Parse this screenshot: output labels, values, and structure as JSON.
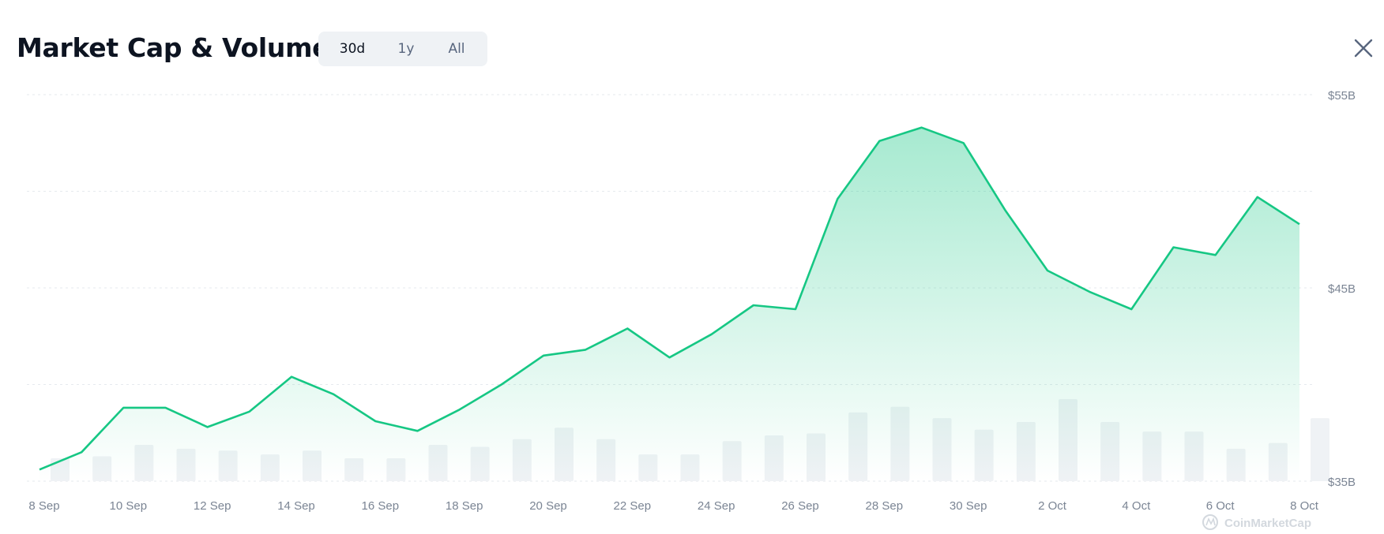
{
  "header": {
    "title": "Market Cap & Volume",
    "ranges": [
      "30d",
      "1y",
      "All"
    ],
    "active_range": "30d"
  },
  "watermark": "CoinMarketCap",
  "colors": {
    "line": "#16c784",
    "area_top": "#16c784",
    "volume_bar": "#eff2f5",
    "grid": "#e6e9ee",
    "axis_text": "#7b8594"
  },
  "chart_data": {
    "type": "area",
    "series": [
      {
        "name": "",
        "x": [
          "8 Sep",
          "9 Sep",
          "10 Sep",
          "11 Sep",
          "12 Sep",
          "13 Sep",
          "14 Sep",
          "15 Sep",
          "16 Sep",
          "17 Sep",
          "18 Sep",
          "19 Sep",
          "20 Sep",
          "21 Sep",
          "22 Sep",
          "23 Sep",
          "24 Sep",
          "25 Sep",
          "26 Sep",
          "27 Sep",
          "28 Sep",
          "29 Sep",
          "30 Sep",
          "1 Oct",
          "2 Oct",
          "3 Oct",
          "4 Oct",
          "5 Oct",
          "6 Oct",
          "7 Oct",
          "8 Oct"
        ],
        "values": [
          35.6,
          36.5,
          38.8,
          38.8,
          37.8,
          38.6,
          40.4,
          39.5,
          38.1,
          37.6,
          38.7,
          40.0,
          41.5,
          41.8,
          42.9,
          41.4,
          42.6,
          44.1,
          43.9,
          49.6,
          52.6,
          53.3,
          52.5,
          49.0,
          45.9,
          44.8,
          43.9,
          47.1,
          46.7,
          49.7,
          48.3
        ]
      }
    ],
    "volume": [
      1.2,
      1.3,
      1.9,
      1.7,
      1.6,
      1.4,
      1.6,
      1.2,
      1.2,
      1.9,
      1.8,
      2.2,
      2.8,
      2.2,
      1.4,
      1.4,
      2.1,
      2.4,
      2.5,
      3.6,
      3.9,
      3.3,
      2.7,
      3.1,
      4.3,
      3.1,
      2.6,
      2.6,
      1.7,
      2.0,
      3.3
    ],
    "x_tick_labels": [
      "8 Sep",
      "10 Sep",
      "12 Sep",
      "14 Sep",
      "16 Sep",
      "18 Sep",
      "20 Sep",
      "22 Sep",
      "24 Sep",
      "26 Sep",
      "28 Sep",
      "30 Sep",
      "2 Oct",
      "4 Oct",
      "6 Oct",
      "8 Oct"
    ],
    "y_ticks": [
      35,
      40,
      45,
      50,
      55
    ],
    "y_tick_labels": [
      "$35B",
      "",
      "$45B",
      "",
      "$55B"
    ],
    "ylim": [
      35,
      55
    ],
    "title": "Market Cap & Volume",
    "xlabel": "",
    "ylabel": "",
    "grid": true
  }
}
